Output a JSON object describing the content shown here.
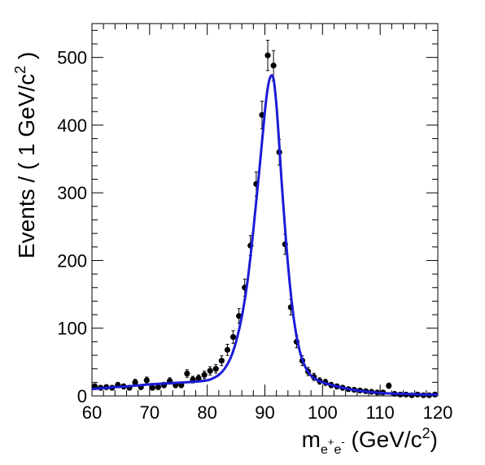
{
  "chart_data": {
    "type": "scatter",
    "title": "",
    "xlabel": {
      "base": "m",
      "sub_e1": "e",
      "sup_plus": "+",
      "sub_e2": "e",
      "sup_minus": "-",
      "paren_open": " (GeV/c",
      "sup_2": "2",
      "paren_close": ")"
    },
    "ylabel": {
      "text": "Events / ( 1 GeV/c",
      "sup": "2",
      "close": " )"
    },
    "xlim": [
      60,
      120
    ],
    "ylim": [
      0,
      550
    ],
    "x_ticks": [
      60,
      70,
      80,
      90,
      100,
      110,
      120
    ],
    "y_ticks": [
      0,
      100,
      200,
      300,
      400,
      500
    ],
    "grid": false,
    "legend": "none",
    "series": [
      {
        "kind": "points-with-errors",
        "color": "#000000",
        "x": [
          60.5,
          61.5,
          62.5,
          63.5,
          64.5,
          65.5,
          66.5,
          67.5,
          68.5,
          69.5,
          70.5,
          71.5,
          72.5,
          73.5,
          74.5,
          75.5,
          76.5,
          77.5,
          78.5,
          79.5,
          80.5,
          81.5,
          82.5,
          83.5,
          84.5,
          85.5,
          86.5,
          87.5,
          88.5,
          89.5,
          90.5,
          91.5,
          92.5,
          93.5,
          94.5,
          95.5,
          96.5,
          97.5,
          98.5,
          99.5,
          100.5,
          101.5,
          102.5,
          103.5,
          104.5,
          105.5,
          106.5,
          107.5,
          108.5,
          109.5,
          110.5,
          111.5,
          112.5,
          113.5,
          114.5,
          115.5,
          116.5,
          117.5,
          118.5,
          119.5
        ],
        "y": [
          14,
          12,
          13,
          12,
          16,
          14,
          12,
          20,
          13,
          23,
          12,
          13,
          16,
          22,
          16,
          16,
          33,
          24,
          26,
          31,
          37,
          40,
          52,
          68,
          87,
          118,
          160,
          222,
          313,
          415,
          503,
          488,
          360,
          224,
          131,
          80,
          52,
          36,
          28,
          22,
          20,
          16,
          14,
          12,
          10,
          9,
          8,
          7,
          6,
          5,
          5,
          15,
          3,
          2,
          2,
          1,
          2,
          1,
          1,
          2
        ],
        "yerr": [
          4,
          3.5,
          3.6,
          3.5,
          4,
          3.7,
          3.5,
          4.5,
          3.6,
          4.8,
          3.5,
          3.6,
          4,
          4.7,
          4,
          4,
          5.7,
          4.9,
          5.1,
          5.6,
          6.1,
          6.3,
          7.2,
          8.2,
          9.3,
          10.9,
          12.6,
          14.9,
          17.7,
          20.4,
          22.4,
          22.1,
          19,
          15,
          11.4,
          8.9,
          7.2,
          6,
          5.3,
          4.7,
          4.5,
          4,
          3.7,
          3.5,
          3.2,
          3,
          2.8,
          2.6,
          2.4,
          2.2,
          2.2,
          3.9,
          1.7,
          1.4,
          1.4,
          1,
          1.4,
          1,
          1,
          1.4
        ]
      },
      {
        "kind": "fit-curve",
        "color": "#1b1bd6",
        "x": [
          60,
          62,
          64,
          66,
          68,
          70,
          72,
          74,
          76,
          78,
          80,
          81,
          82,
          83,
          84,
          85,
          86,
          87,
          88,
          89,
          90,
          90.5,
          91,
          91.5,
          92,
          92.5,
          93,
          94,
          95,
          96,
          97,
          98,
          99,
          100,
          102,
          104,
          106,
          108,
          110,
          112,
          114,
          116,
          118,
          120
        ],
        "y": [
          10,
          11.5,
          13,
          14,
          15.5,
          17,
          18,
          19,
          20,
          21,
          23,
          26,
          31,
          40,
          55,
          80,
          117,
          170,
          245,
          330,
          420,
          455,
          472,
          468,
          430,
          370,
          305,
          195,
          115,
          68,
          43,
          30,
          24,
          20,
          15,
          11,
          8,
          6,
          4.5,
          3.5,
          3,
          2.5,
          2,
          2
        ]
      }
    ]
  }
}
